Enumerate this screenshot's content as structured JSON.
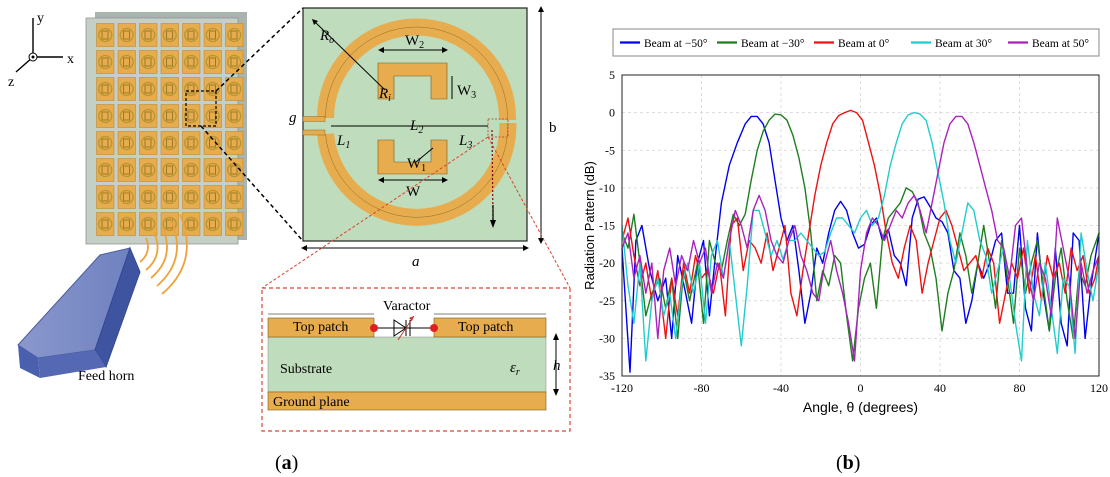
{
  "panel_a": {
    "axes": {
      "x": "x",
      "y": "y",
      "z": "z"
    },
    "feed_horn_label": "Feed horn",
    "unit_cell": {
      "Ro": "R",
      "Ro_sub": "o",
      "Ri": "R",
      "Ri_sub": "i",
      "W2": "W",
      "W2_sub": "2",
      "W3": "W",
      "W3_sub": "3",
      "W1": "W",
      "W1_sub": "1",
      "W": "W",
      "L1": "L",
      "L1_sub": "1",
      "L2": "L",
      "L2_sub": "2",
      "L3": "L",
      "L3_sub": "3",
      "g": "g",
      "a": "a",
      "b": "b"
    },
    "cross_section": {
      "varactor": "Varactor",
      "top_patch_left": "Top patch",
      "top_patch_right": "Top patch",
      "substrate": "Substrate",
      "eps": "ε",
      "eps_sub": "r",
      "h": "h",
      "ground": "Ground plane"
    },
    "label_paren_open": "(",
    "label_letter": "a",
    "label_paren_close": ")"
  },
  "panel_b": {
    "label_paren_open": "(",
    "label_letter": "b",
    "label_paren_close": ")"
  },
  "colors": {
    "patch": "#e6ac4e",
    "substrate": "#bfdcbc",
    "beam_m50": "#0000ee",
    "beam_m30": "#1e7e1e",
    "beam_0": "#ee1111",
    "beam_30": "#22cccc",
    "beam_50": "#aa22bb"
  },
  "chart_data": {
    "type": "line",
    "xlabel": "Angle, θ (degrees)",
    "ylabel": "Radiation Pattern (dB)",
    "xlim": [
      -120,
      120
    ],
    "ylim": [
      -35,
      5
    ],
    "xticks": [
      -120,
      -80,
      -40,
      0,
      40,
      80,
      120
    ],
    "yticks": [
      5,
      0,
      -5,
      -10,
      -15,
      -20,
      -25,
      -30,
      -35
    ],
    "grid": true,
    "legend_position": "top",
    "series": [
      {
        "name": "Beam at −50°",
        "color": "#0000ee",
        "x": [
          -120,
          -116,
          -113,
          -110,
          -106,
          -102,
          -98,
          -95,
          -92,
          -88,
          -85,
          -82,
          -79,
          -76,
          -73,
          -70,
          -66,
          -62,
          -58,
          -55,
          -52,
          -49,
          -46,
          -43,
          -40,
          -37,
          -34,
          -31,
          -28,
          -25,
          -22,
          -19,
          -16,
          -13,
          -10,
          -7,
          -4,
          -1,
          2,
          5,
          8,
          11,
          14,
          17,
          20,
          23,
          26,
          29,
          32,
          35,
          38,
          41,
          44,
          47,
          50,
          53,
          56,
          59,
          62,
          65,
          68,
          71,
          74,
          77,
          80,
          83,
          86,
          89,
          92,
          95,
          98,
          101,
          104,
          107,
          110,
          113,
          116,
          120
        ],
        "y": [
          -18,
          -34.5,
          -17,
          -15,
          -21,
          -25,
          -22,
          -30,
          -19,
          -24,
          -28,
          -20,
          -17,
          -27,
          -19,
          -12,
          -7,
          -4,
          -1.5,
          -0.5,
          -0.5,
          -1.5,
          -4,
          -9,
          -14,
          -17,
          -15,
          -21,
          -28,
          -24,
          -18,
          -20,
          -16,
          -13,
          -11.8,
          -13,
          -16,
          -18,
          -17.5,
          -15,
          -14,
          -17,
          -15.5,
          -19,
          -20,
          -23,
          -14,
          -11.5,
          -11.2,
          -12.5,
          -14,
          -14.5,
          -16,
          -21,
          -22,
          -28,
          -25,
          -20,
          -22,
          -20,
          -17,
          -16,
          -24,
          -24,
          -15,
          -26,
          -29,
          -16,
          -24,
          -29,
          -18,
          -28,
          -31,
          -16,
          -17,
          -30,
          -23,
          -16
        ]
      },
      {
        "name": "Beam at −30°",
        "color": "#1e7e1e",
        "x": [
          -120,
          -117,
          -114,
          -111,
          -108,
          -105,
          -101,
          -98,
          -95,
          -92,
          -89,
          -86,
          -82,
          -79,
          -76,
          -73,
          -70,
          -67,
          -64,
          -61,
          -58,
          -55,
          -52,
          -49,
          -46,
          -43,
          -40,
          -37,
          -34,
          -31,
          -28,
          -25,
          -22,
          -19,
          -16,
          -13,
          -10,
          -7,
          -4,
          -1,
          2,
          5,
          8,
          11,
          14,
          17,
          20,
          23,
          26,
          29,
          32,
          35,
          38,
          41,
          44,
          47,
          50,
          53,
          56,
          59,
          62,
          65,
          68,
          71,
          74,
          77,
          80,
          83,
          86,
          89,
          92,
          95,
          98,
          101,
          104,
          107,
          110,
          113,
          116,
          120
        ],
        "y": [
          -16,
          -18,
          -13.5,
          -20,
          -27,
          -24,
          -22,
          -26,
          -22,
          -30,
          -21,
          -25,
          -20,
          -28,
          -17,
          -20,
          -21,
          -17,
          -13.5,
          -15,
          -13.5,
          -9,
          -5,
          -2.5,
          -1,
          -0.2,
          -0.3,
          -1,
          -3,
          -6,
          -10,
          -16,
          -25,
          -21,
          -23,
          -19,
          -20,
          -27,
          -33,
          -26,
          -22,
          -20,
          -26,
          -17,
          -14,
          -13,
          -12,
          -10,
          -10.5,
          -12,
          -16,
          -18,
          -22,
          -29,
          -24,
          -21,
          -16,
          -19,
          -24,
          -20,
          -15,
          -20,
          -26,
          -17,
          -22,
          -28,
          -18,
          -24,
          -20,
          -17,
          -23,
          -29,
          -22,
          -18,
          -25,
          -30,
          -21,
          -23,
          -19,
          -16
        ]
      },
      {
        "name": "Beam at 0°",
        "color": "#ee1111",
        "x": [
          -120,
          -117,
          -114,
          -111,
          -108,
          -105,
          -102,
          -98,
          -95,
          -92,
          -89,
          -86,
          -83,
          -80,
          -77,
          -74,
          -71,
          -68,
          -65,
          -62,
          -59,
          -56,
          -53,
          -50,
          -47,
          -44,
          -41,
          -38,
          -35,
          -32,
          -29,
          -26,
          -23,
          -20,
          -17,
          -14,
          -11,
          -8,
          -5,
          -2,
          1,
          4,
          7,
          10,
          13,
          16,
          19,
          22,
          25,
          28,
          31,
          34,
          37,
          40,
          43,
          46,
          49,
          52,
          55,
          58,
          61,
          64,
          67,
          70,
          73,
          76,
          79,
          82,
          85,
          88,
          91,
          94,
          97,
          100,
          103,
          106,
          109,
          112,
          115,
          118,
          120
        ],
        "y": [
          -17,
          -14,
          -19,
          -23,
          -20,
          -25,
          -21,
          -30,
          -22,
          -27,
          -20,
          -24,
          -19,
          -22,
          -21,
          -24,
          -20,
          -27,
          -15,
          -14,
          -21,
          -17,
          -18,
          -20,
          -16,
          -21,
          -18,
          -15,
          -24,
          -27,
          -21,
          -16,
          -11,
          -7,
          -4,
          -1.5,
          -0.4,
          0,
          0.3,
          0,
          -1,
          -4,
          -7,
          -11,
          -16,
          -20,
          -22,
          -18,
          -15,
          -17,
          -24,
          -20,
          -17,
          -14,
          -13,
          -15,
          -18,
          -21,
          -20,
          -19,
          -22,
          -18,
          -20,
          -28,
          -24,
          -20,
          -22,
          -18,
          -24,
          -19,
          -25,
          -19,
          -22,
          -20,
          -24,
          -18,
          -21,
          -19,
          -24,
          -22,
          -19
        ]
      },
      {
        "name": "Beam at 30°",
        "color": "#22cccc",
        "x": [
          -120,
          -117,
          -114,
          -111,
          -108,
          -105,
          -102,
          -99,
          -96,
          -93,
          -90,
          -87,
          -84,
          -81,
          -78,
          -75,
          -72,
          -69,
          -66,
          -63,
          -60,
          -57,
          -54,
          -51,
          -48,
          -45,
          -42,
          -39,
          -36,
          -33,
          -30,
          -27,
          -24,
          -21,
          -18,
          -15,
          -12,
          -9,
          -6,
          -3,
          0,
          3,
          6,
          9,
          12,
          15,
          18,
          21,
          24,
          27,
          30,
          33,
          36,
          39,
          42,
          45,
          48,
          51,
          54,
          57,
          60,
          63,
          66,
          69,
          72,
          75,
          78,
          81,
          84,
          87,
          90,
          93,
          96,
          99,
          102,
          105,
          108,
          111,
          114,
          117,
          120
        ],
        "y": [
          -15,
          -23,
          -28,
          -20,
          -33,
          -25,
          -22,
          -27,
          -24,
          -30,
          -23,
          -20,
          -24,
          -20,
          -28,
          -19,
          -17,
          -22,
          -17,
          -24,
          -31,
          -23,
          -13,
          -13,
          -16,
          -19,
          -17,
          -19.5,
          -17,
          -17,
          -16,
          -17,
          -18,
          -19,
          -18.5,
          -16,
          -14,
          -14,
          -15,
          -16,
          -14,
          -13,
          -15,
          -14,
          -11,
          -7,
          -4,
          -1.5,
          -0.3,
          0,
          -0.2,
          -1,
          -4,
          -8,
          -12,
          -17,
          -20,
          -16,
          -12,
          -13,
          -17,
          -19,
          -24,
          -21,
          -18,
          -22,
          -28,
          -33,
          -17,
          -24,
          -27,
          -20,
          -26,
          -32,
          -22,
          -23,
          -32,
          -16,
          -21,
          -25,
          -20
        ]
      },
      {
        "name": "Beam at 50°",
        "color": "#aa22bb",
        "x": [
          -120,
          -117,
          -114,
          -111,
          -108,
          -105,
          -102,
          -99,
          -96,
          -93,
          -90,
          -87,
          -84,
          -81,
          -78,
          -75,
          -72,
          -69,
          -66,
          -63,
          -60,
          -57,
          -54,
          -51,
          -48,
          -45,
          -42,
          -39,
          -36,
          -33,
          -30,
          -27,
          -24,
          -21,
          -18,
          -15,
          -12,
          -9,
          -6,
          -3,
          0,
          3,
          6,
          9,
          12,
          15,
          18,
          21,
          24,
          27,
          30,
          33,
          36,
          39,
          42,
          45,
          48,
          51,
          54,
          57,
          60,
          63,
          66,
          69,
          72,
          75,
          78,
          81,
          84,
          87,
          90,
          93,
          96,
          99,
          102,
          105,
          108,
          111,
          114,
          117,
          120
        ],
        "y": [
          -18,
          -16,
          -22,
          -19,
          -24,
          -20,
          -30,
          -21,
          -18,
          -23,
          -19,
          -21,
          -17,
          -20,
          -18,
          -24,
          -20,
          -22,
          -17,
          -13,
          -15,
          -18,
          -13,
          -11,
          -13,
          -17,
          -19,
          -20,
          -17,
          -15,
          -19,
          -21,
          -24,
          -25,
          -20,
          -17,
          -21,
          -24,
          -28,
          -33,
          -21,
          -16,
          -14,
          -15,
          -17,
          -15,
          -13,
          -14,
          -12,
          -11,
          -13,
          -16,
          -12,
          -8,
          -4,
          -1.5,
          -0.5,
          -0.5,
          -1.5,
          -4,
          -7,
          -10,
          -13,
          -17,
          -18,
          -22,
          -15,
          -14,
          -21,
          -25,
          -20,
          -22,
          -27,
          -14,
          -18,
          -22,
          -30,
          -20,
          -24,
          -21,
          -19
        ]
      }
    ]
  }
}
